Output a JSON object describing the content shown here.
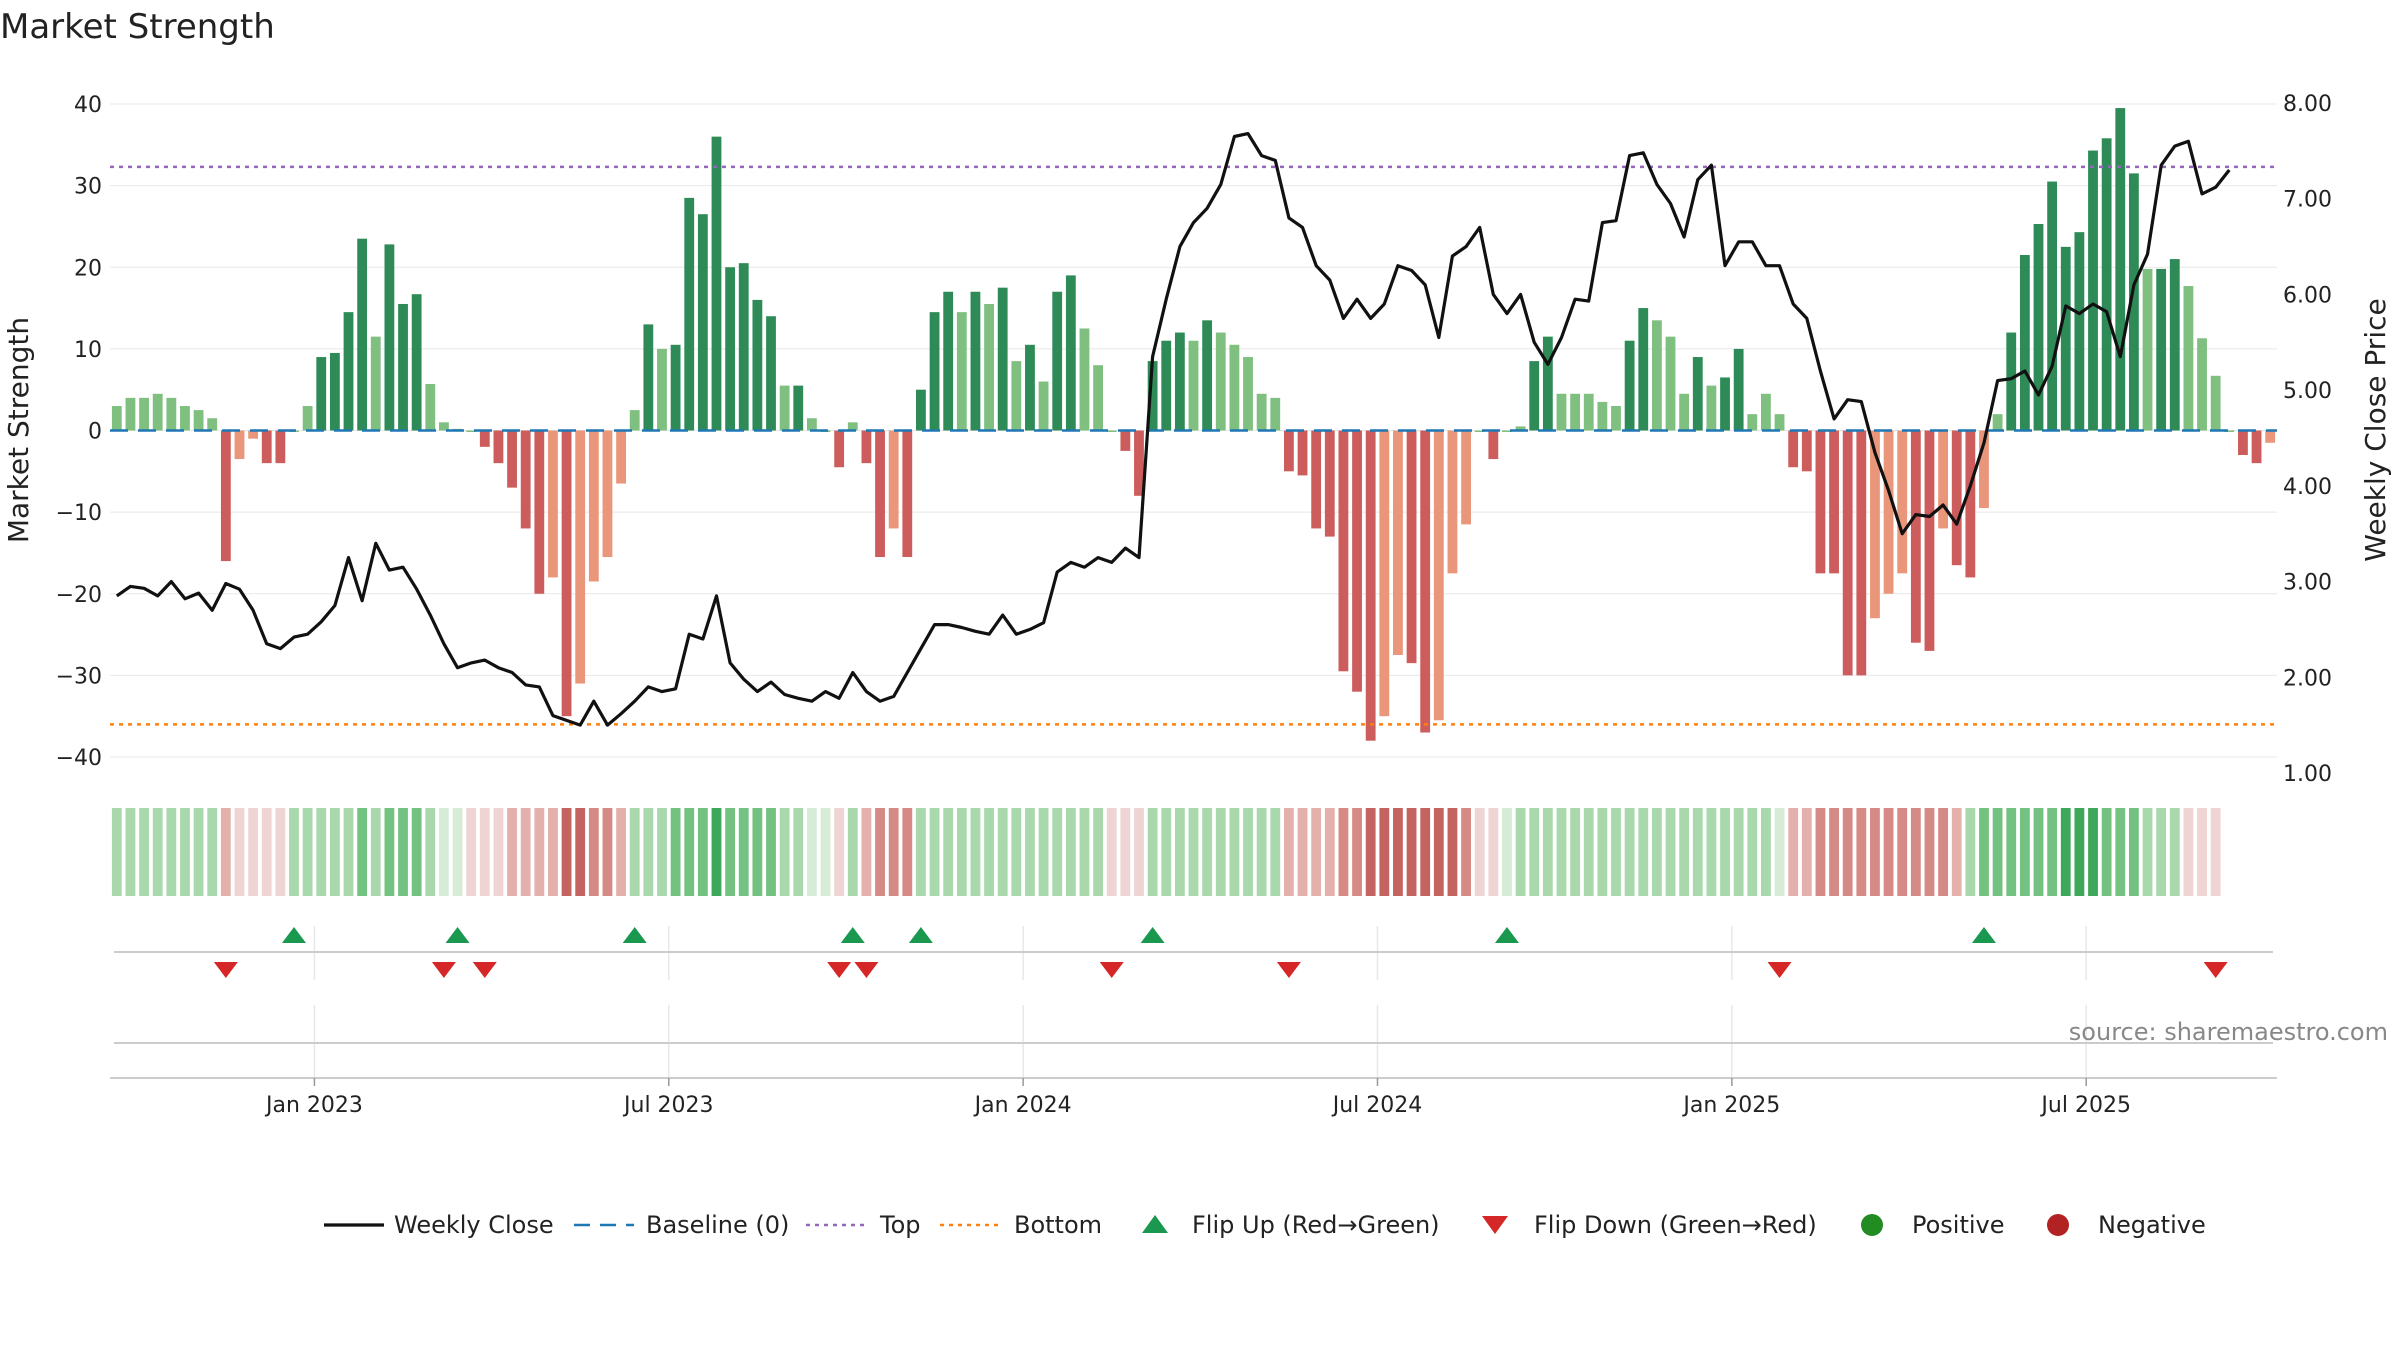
{
  "title": "Market Strength",
  "source": "source: sharemaestro.com",
  "chart_data": {
    "type": "bar",
    "title": "Market Strength",
    "ylabel": "Market Strength",
    "y2label": "Weekly Close Price",
    "ylim": [
      -45,
      42
    ],
    "y2lim": [
      0.9,
      8.1
    ],
    "yticks": [
      "40",
      "30",
      "20",
      "10",
      "0",
      "−10",
      "−20",
      "−30",
      "−40"
    ],
    "yticks_values": [
      40,
      30,
      20,
      10,
      0,
      -10,
      -20,
      -30,
      -40
    ],
    "y2ticks": [
      "8.00",
      "7.00",
      "6.00",
      "5.00",
      "4.00",
      "3.00",
      "2.00",
      "1.00"
    ],
    "y2ticks_values": [
      8,
      7,
      6,
      5,
      4,
      3,
      2,
      1
    ],
    "xticks": [
      "Jan 2023",
      "Jul 2023",
      "Jan 2024",
      "Jul 2024",
      "Jan 2025",
      "Jul 2025"
    ],
    "xticks_week_index": [
      14.5,
      40.5,
      66.5,
      92.5,
      118.5,
      144.5
    ],
    "top_line": 32.3,
    "bottom_line": -36,
    "baseline": 0,
    "strength": [
      3,
      4,
      4,
      4.5,
      4,
      3,
      2.5,
      1.5,
      -16,
      -3.5,
      -1,
      -4,
      -4,
      0,
      3,
      9,
      9.5,
      14.5,
      23.5,
      11.5,
      22.8,
      15.5,
      16.7,
      5.7,
      1,
      0.2,
      0,
      -2,
      -4,
      -7,
      -12,
      -20,
      -18,
      -35,
      -31,
      -18.5,
      -15.5,
      -6.5,
      2.5,
      13,
      10,
      10.5,
      28.5,
      26.5,
      36,
      20,
      20.5,
      16,
      14,
      5.5,
      5.5,
      1.5,
      0,
      -4.5,
      1,
      -4,
      -15.5,
      -12,
      -15.5,
      5,
      14.5,
      17,
      14.5,
      17,
      15.5,
      17.5,
      8.5,
      10.5,
      6,
      17,
      19,
      12.5,
      8,
      0,
      -2.5,
      -8,
      8.5,
      11,
      12,
      11,
      13.5,
      12,
      10.5,
      9,
      4.5,
      4,
      -5,
      -5.5,
      -12,
      -13,
      -29.5,
      -32,
      -38,
      -35,
      -27.5,
      -28.5,
      -37,
      -35.5,
      -17.5,
      -11.5,
      0,
      -3.5,
      0,
      0.5,
      8.5,
      11.5,
      4.5,
      4.5,
      4.5,
      3.5,
      3,
      11,
      15,
      13.5,
      11.5,
      4.5,
      9,
      5.5,
      6.5,
      10,
      2,
      4.5,
      2,
      -4.5,
      -5,
      -17.5,
      -17.5,
      -30,
      -30,
      -23,
      -20,
      -17.5,
      -26,
      -27,
      -12,
      -16.5,
      -18,
      -9.5,
      2,
      12,
      21.5,
      25.3,
      30.5,
      22.5,
      24.3,
      34.3,
      35.8,
      39.5,
      31.5,
      19.8,
      19.8,
      21,
      17.7,
      11.3,
      6.7,
      0,
      -3,
      -4,
      -1.5
    ],
    "close": [
      2.85,
      2.95,
      2.93,
      2.85,
      3.0,
      2.82,
      2.88,
      2.7,
      2.98,
      2.92,
      2.7,
      2.35,
      2.3,
      2.42,
      2.45,
      2.58,
      2.75,
      3.25,
      2.8,
      3.4,
      3.12,
      3.15,
      2.92,
      2.65,
      2.35,
      2.1,
      2.15,
      2.18,
      2.1,
      2.05,
      1.92,
      1.9,
      1.6,
      1.55,
      1.5,
      1.75,
      1.5,
      1.62,
      1.75,
      1.9,
      1.85,
      1.88,
      2.45,
      2.4,
      2.85,
      2.15,
      1.98,
      1.85,
      1.95,
      1.82,
      1.78,
      1.75,
      1.85,
      1.78,
      2.05,
      1.85,
      1.75,
      1.8,
      2.05,
      2.3,
      2.55,
      2.55,
      2.52,
      2.48,
      2.45,
      2.65,
      2.45,
      2.5,
      2.57,
      3.1,
      3.2,
      3.15,
      3.25,
      3.2,
      3.35,
      3.25,
      5.35,
      5.95,
      6.5,
      6.75,
      6.9,
      7.15,
      7.65,
      7.68,
      7.45,
      7.4,
      6.8,
      6.7,
      6.3,
      6.15,
      5.75,
      5.95,
      5.75,
      5.9,
      6.3,
      6.25,
      6.1,
      5.55,
      6.4,
      6.5,
      6.7,
      6.0,
      5.8,
      6.0,
      5.5,
      5.27,
      5.55,
      5.95,
      5.93,
      6.75,
      6.77,
      7.45,
      7.48,
      7.15,
      6.95,
      6.6,
      7.2,
      7.35,
      6.3,
      6.55,
      6.55,
      6.3,
      6.3,
      5.9,
      5.75,
      5.2,
      4.7,
      4.9,
      4.88,
      4.35,
      3.95,
      3.5,
      3.7,
      3.68,
      3.8,
      3.6,
      4.0,
      4.45,
      5.1,
      5.12,
      5.2,
      4.95,
      5.25,
      5.88,
      5.8,
      5.9,
      5.82,
      5.35,
      6.1,
      6.42,
      7.35,
      7.55,
      7.6,
      7.05,
      7.12,
      7.3
    ],
    "momentum": [
      "lp",
      "lp",
      "lp",
      "lp",
      "lp",
      "lp",
      "lp",
      "lp",
      "ln",
      "vn",
      "vn",
      "vn",
      "vn",
      "lp",
      "lp",
      "lp",
      "lp",
      "lp",
      "p",
      "lp",
      "p",
      "p",
      "p",
      "lp",
      "vlp",
      "vlp",
      "vn",
      "vn",
      "vn",
      "ln",
      "ln",
      "ln",
      "ln",
      "dn",
      "dn",
      "mn",
      "mn",
      "ln",
      "lp",
      "lp",
      "lp",
      "p",
      "p",
      "p",
      "dp",
      "p",
      "p",
      "p",
      "p",
      "lp",
      "lp",
      "vlp",
      "vlp",
      "vn",
      "lp",
      "ln",
      "mn",
      "mn",
      "mn",
      "lp",
      "lp",
      "lp",
      "lp",
      "lp",
      "lp",
      "lp",
      "lp",
      "lp",
      "lp",
      "lp",
      "lp",
      "lp",
      "lp",
      "vn",
      "vn",
      "vn",
      "lp",
      "lp",
      "lp",
      "lp",
      "lp",
      "lp",
      "lp",
      "lp",
      "lp",
      "lp",
      "ln",
      "ln",
      "ln",
      "ln",
      "mn",
      "mn",
      "dn",
      "dn",
      "dn",
      "dn",
      "dn",
      "dn",
      "dn",
      "mn",
      "vn",
      "vn",
      "vlp",
      "lp",
      "lp",
      "lp",
      "lp",
      "lp",
      "lp",
      "lp",
      "lp",
      "lp",
      "lp",
      "lp",
      "lp",
      "lp",
      "lp",
      "lp",
      "lp",
      "lp",
      "lp",
      "lp",
      "vlp",
      "ln",
      "ln",
      "mn",
      "mn",
      "mn",
      "mn",
      "mn",
      "mn",
      "mn",
      "mn",
      "mn",
      "mn",
      "ln",
      "lp",
      "p",
      "p",
      "p",
      "p",
      "p",
      "p",
      "dp",
      "dp",
      "dp",
      "p",
      "p",
      "p",
      "lp",
      "lp",
      "lp",
      "vn",
      "vn",
      "vn"
    ],
    "flip_up_weeks": [
      13,
      25,
      38,
      54,
      59,
      76,
      102,
      137
    ],
    "flip_down_weeks": [
      8,
      24,
      27,
      53,
      55,
      73,
      86,
      122,
      154
    ],
    "legend": [
      "Weekly Close",
      "Baseline (0)",
      "Top",
      "Bottom",
      "Flip Up (Red→Green)",
      "Flip Down (Green→Red)",
      "Positive",
      "Negative"
    ],
    "colors": {
      "strong_pos": "#2e8b57",
      "weak_pos": "#7fbf7f",
      "strong_neg": "#cd5c5c",
      "weak_neg": "#e9967a",
      "close": "#111111",
      "baseline": "#1f77b4",
      "top": "#9467bd",
      "bottom": "#ff7f0e",
      "flip_up": "#1a9850",
      "flip_down": "#d62728",
      "positive": "#228b22",
      "negative": "#b22222",
      "grid": "#e8e8e8",
      "axis": "#cccccc"
    },
    "momentum_colors": {
      "vlp": "#d6ecd6",
      "lp": "#a8d8ac",
      "p": "#74c282",
      "dp": "#3da85a",
      "vn": "#efd4d4",
      "ln": "#e3b0ac",
      "mn": "#d68a86",
      "dn": "#c46460"
    }
  }
}
